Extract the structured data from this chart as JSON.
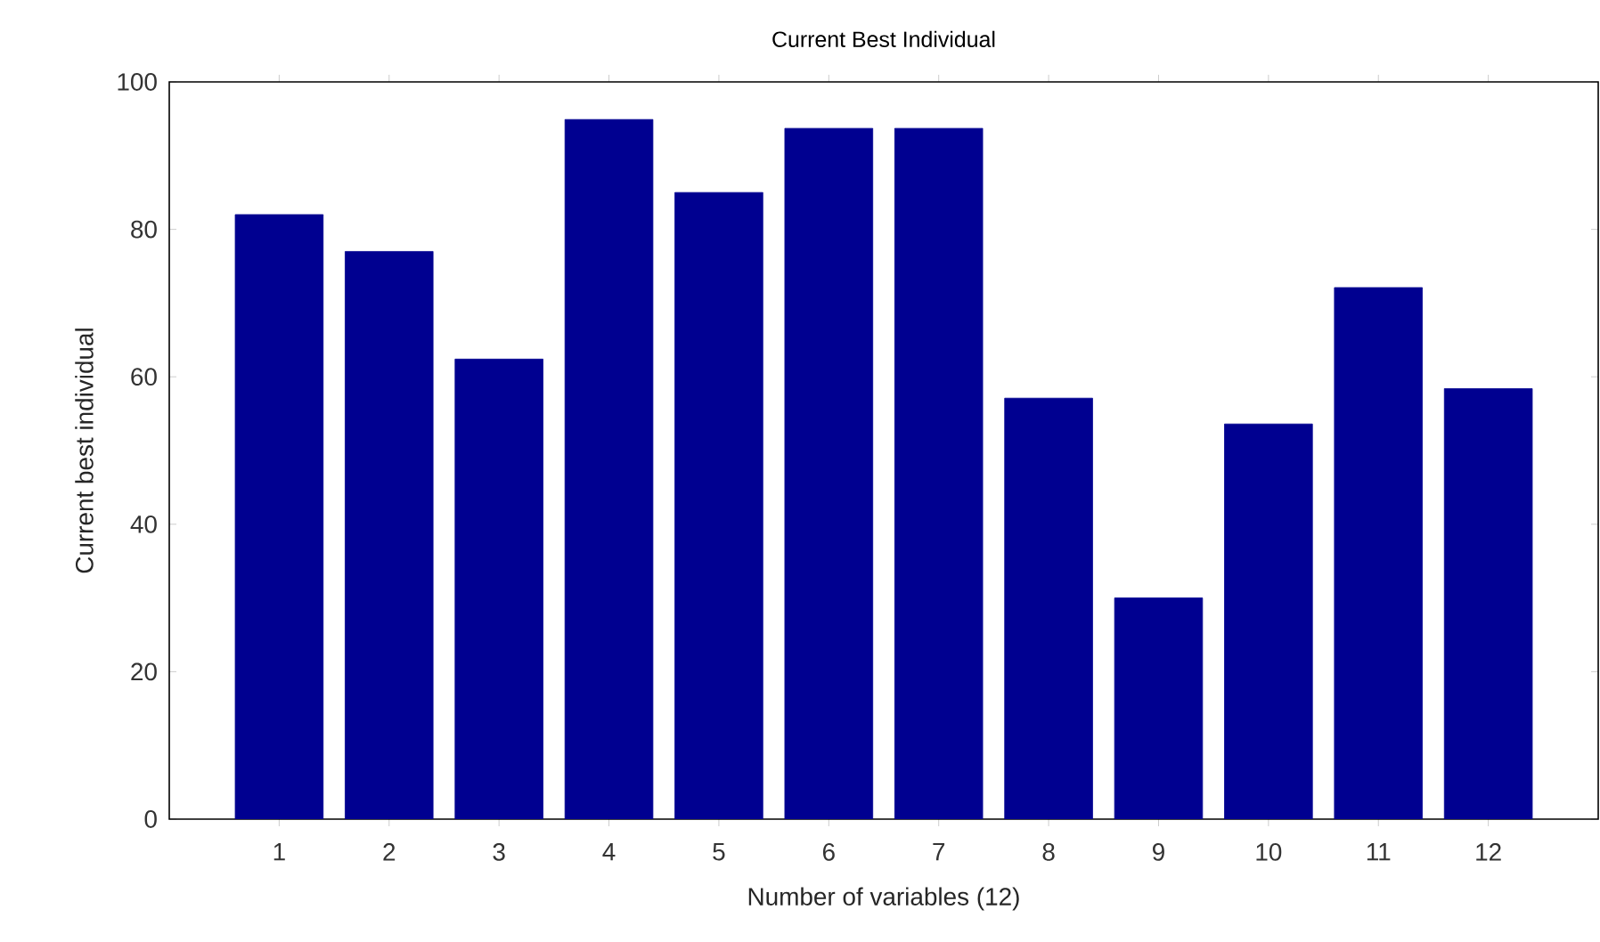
{
  "chart_data": {
    "type": "bar",
    "title": "Current Best Individual",
    "xlabel": "Number of variables (12)",
    "ylabel": "Current best individual",
    "categories": [
      "1",
      "2",
      "3",
      "4",
      "5",
      "6",
      "7",
      "8",
      "9",
      "10",
      "11",
      "12"
    ],
    "values": [
      82,
      77,
      62.4,
      94.9,
      85,
      93.7,
      93.7,
      57.1,
      30,
      53.6,
      72.1,
      58.4
    ],
    "color": "#000090",
    "ylim": [
      0,
      100
    ],
    "yticks": [
      0,
      20,
      40,
      60,
      80,
      100
    ],
    "grid": false
  }
}
